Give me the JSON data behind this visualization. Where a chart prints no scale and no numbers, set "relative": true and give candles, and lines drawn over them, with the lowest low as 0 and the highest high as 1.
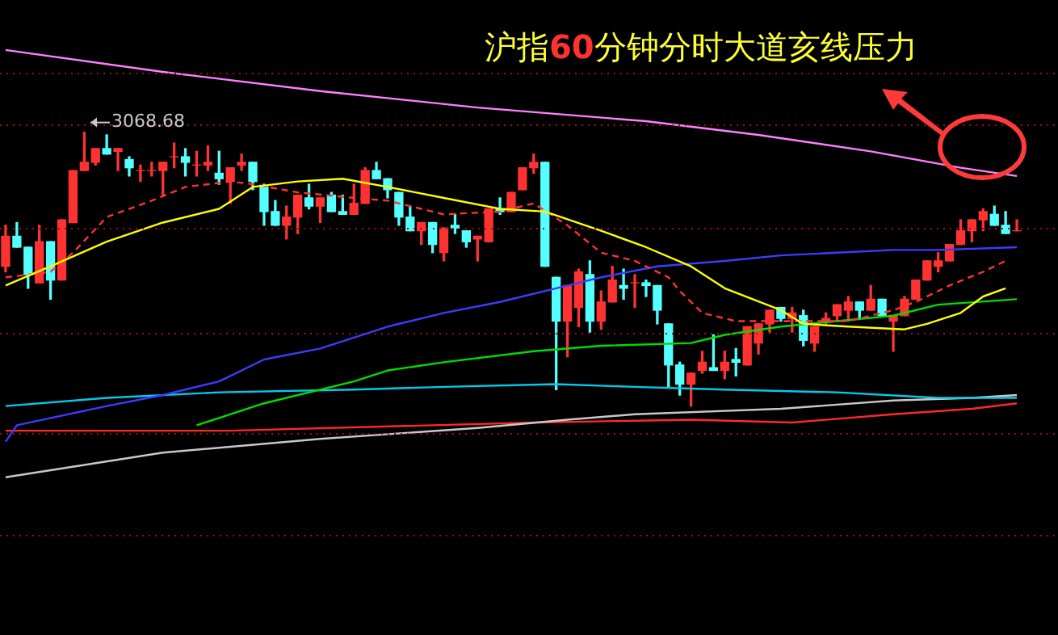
{
  "chart_data": {
    "type": "candlestick",
    "title": "沪指60分钟分时大道亥线压力",
    "relative": true,
    "ref_lines": [
      {
        "axis": "y",
        "value": 1.22,
        "color": "#a01010",
        "line_style": "dotted"
      },
      {
        "axis": "y",
        "value": 1.03,
        "color": "#a01010",
        "line_style": "dotted"
      },
      {
        "axis": "y",
        "value": 0.65,
        "color": "#a01010",
        "line_style": "dotted"
      },
      {
        "axis": "y",
        "value": 0.27,
        "color": "#a01010",
        "line_style": "dotted"
      },
      {
        "axis": "y",
        "value": -0.1,
        "color": "#a01010",
        "line_style": "dotted"
      },
      {
        "axis": "y",
        "value": -0.47,
        "color": "#a01010",
        "line_style": "dotted"
      }
    ],
    "categories": [
      null,
      null,
      null,
      null,
      null,
      null,
      null,
      null,
      null,
      null,
      null,
      null,
      null,
      null,
      null,
      null,
      null,
      null,
      null,
      null,
      null,
      null,
      null,
      null,
      null,
      null,
      null,
      null,
      null,
      null,
      null,
      null,
      null,
      null,
      null,
      null,
      null,
      null,
      null,
      null,
      null,
      null,
      null,
      null,
      null,
      null,
      null,
      null,
      null,
      null,
      null,
      null,
      null,
      null,
      null,
      null,
      null,
      null,
      null,
      null,
      null,
      null,
      null,
      null,
      null,
      null,
      null,
      null,
      null,
      null,
      null,
      null,
      null,
      null,
      null,
      null,
      null,
      null,
      null,
      null,
      null,
      null,
      null,
      null,
      null,
      null,
      null,
      null,
      null,
      null,
      null
    ],
    "ohlc": [
      [
        0.51,
        0.66,
        0.49,
        0.62
      ],
      [
        0.62,
        0.67,
        0.58,
        0.58
      ],
      [
        0.58,
        0.58,
        0.43,
        0.48
      ],
      [
        0.45,
        0.66,
        0.45,
        0.6
      ],
      [
        0.6,
        0.6,
        0.39,
        0.46
      ],
      [
        0.46,
        0.68,
        0.46,
        0.68
      ],
      [
        0.67,
        0.86,
        0.67,
        0.86
      ],
      [
        0.86,
        1,
        0.86,
        0.89
      ],
      [
        0.89,
        0.94,
        0.88,
        0.94
      ],
      [
        0.94,
        0.99,
        0.92,
        0.92
      ],
      [
        0.93,
        0.94,
        0.86,
        0.94
      ],
      [
        0.9,
        0.91,
        0.84,
        0.87
      ],
      [
        0.86,
        0.88,
        0.82,
        0.86
      ],
      [
        0.86,
        0.89,
        0.84,
        0.86
      ],
      [
        0.86,
        0.89,
        0.77,
        0.89
      ],
      [
        0.91,
        0.96,
        0.87,
        0.91
      ],
      [
        0.91,
        0.94,
        0.84,
        0.89
      ],
      [
        0.88,
        0.93,
        0.84,
        0.88
      ],
      [
        0.88,
        0.95,
        0.86,
        0.89
      ],
      [
        0.85,
        0.93,
        0.81,
        0.83
      ],
      [
        0.82,
        0.87,
        0.74,
        0.87
      ],
      [
        0.88,
        0.92,
        0.86,
        0.89
      ],
      [
        0.89,
        0.89,
        0.79,
        0.82
      ],
      [
        0.8,
        0.81,
        0.66,
        0.71
      ],
      [
        0.71,
        0.75,
        0.66,
        0.66
      ],
      [
        0.66,
        0.73,
        0.61,
        0.69
      ],
      [
        0.69,
        0.77,
        0.63,
        0.77
      ],
      [
        0.76,
        0.81,
        0.72,
        0.73
      ],
      [
        0.73,
        0.76,
        0.67,
        0.76
      ],
      [
        0.77,
        0.78,
        0.71,
        0.71
      ],
      [
        0.71,
        0.77,
        0.7,
        0.7
      ],
      [
        0.7,
        0.81,
        0.7,
        0.74
      ],
      [
        0.74,
        0.87,
        0.74,
        0.86
      ],
      [
        0.86,
        0.89,
        0.83,
        0.83
      ],
      [
        0.83,
        0.83,
        0.76,
        0.79
      ],
      [
        0.78,
        0.78,
        0.66,
        0.69
      ],
      [
        0.69,
        0.73,
        0.64,
        0.64
      ],
      [
        0.64,
        0.67,
        0.59,
        0.67
      ],
      [
        0.67,
        0.67,
        0.56,
        0.59
      ],
      [
        0.56,
        0.65,
        0.53,
        0.65
      ],
      [
        0.66,
        0.7,
        0.63,
        0.65
      ],
      [
        0.64,
        0.64,
        0.58,
        0.6
      ],
      [
        0.61,
        0.62,
        0.53,
        0.62
      ],
      [
        0.6,
        0.72,
        0.6,
        0.72
      ],
      [
        0.72,
        0.76,
        0.7,
        0.71
      ],
      [
        0.71,
        0.78,
        0.71,
        0.78
      ],
      [
        0.79,
        0.87,
        0.79,
        0.87
      ],
      [
        0.87,
        0.92,
        0.85,
        0.89
      ],
      [
        0.89,
        0.89,
        0.51,
        0.51
      ],
      [
        0.47,
        0.47,
        0.06,
        0.31
      ],
      [
        0.31,
        0.44,
        0.18,
        0.44
      ],
      [
        0.36,
        0.5,
        0.29,
        0.49
      ],
      [
        0.48,
        0.53,
        0.27,
        0.31
      ],
      [
        0.31,
        0.42,
        0.28,
        0.38
      ],
      [
        0.38,
        0.51,
        0.38,
        0.46
      ],
      [
        0.44,
        0.5,
        0.39,
        0.43
      ],
      [
        0.45,
        0.48,
        0.36,
        0.45
      ],
      [
        0.45,
        0.46,
        0.4,
        0.44
      ],
      [
        0.44,
        0.44,
        0.3,
        0.35
      ],
      [
        0.3,
        0.3,
        0.07,
        0.15
      ],
      [
        0.15,
        0.16,
        0.04,
        0.08
      ],
      [
        0.08,
        0.12,
        0,
        0.12
      ],
      [
        0.13,
        0.2,
        0.12,
        0.16
      ],
      [
        0.14,
        0.26,
        0.13,
        0.13
      ],
      [
        0.13,
        0.2,
        0.1,
        0.16
      ],
      [
        0.17,
        0.21,
        0.11,
        0.16
      ],
      [
        0.15,
        0.29,
        0.15,
        0.29
      ],
      [
        0.23,
        0.3,
        0.19,
        0.3
      ],
      [
        0.3,
        0.35,
        0.27,
        0.35
      ],
      [
        0.36,
        0.36,
        0.31,
        0.32
      ],
      [
        0.32,
        0.36,
        0.27,
        0.34
      ],
      [
        0.33,
        0.35,
        0.22,
        0.24
      ],
      [
        0.23,
        0.29,
        0.2,
        0.29
      ],
      [
        0.31,
        0.34,
        0.3,
        0.32
      ],
      [
        0.33,
        0.37,
        0.31,
        0.37
      ],
      [
        0.35,
        0.4,
        0.31,
        0.38
      ],
      [
        0.38,
        0.38,
        0.32,
        0.35
      ],
      [
        0.35,
        0.44,
        0.35,
        0.39
      ],
      [
        0.39,
        0.39,
        0.33,
        0.33
      ],
      [
        0.31,
        0.33,
        0.2,
        0.33
      ],
      [
        0.33,
        0.4,
        0.33,
        0.39
      ],
      [
        0.39,
        0.46,
        0.39,
        0.46
      ],
      [
        0.46,
        0.53,
        0.46,
        0.53
      ],
      [
        0.51,
        0.56,
        0.49,
        0.53
      ],
      [
        0.53,
        0.59,
        0.53,
        0.59
      ],
      [
        0.59,
        0.68,
        0.59,
        0.64
      ],
      [
        0.64,
        0.68,
        0.6,
        0.68
      ],
      [
        0.68,
        0.72,
        0.64,
        0.71
      ],
      [
        0.7,
        0.73,
        0.66,
        0.66
      ],
      [
        0.66,
        0.71,
        0.63,
        0.63
      ],
      [
        0.64,
        0.68,
        0.64,
        0.64
      ]
    ],
    "series": [
      {
        "type": "line",
        "color": "#ff80ff",
        "values": [
          1.3,
          null,
          null,
          null,
          null,
          null,
          null,
          null,
          null,
          null,
          null,
          null,
          null,
          null,
          1.22,
          null,
          null,
          null,
          null,
          null,
          null,
          null,
          null,
          null,
          null,
          null,
          null,
          null,
          1.15,
          null,
          null,
          null,
          null,
          null,
          null,
          null,
          null,
          null,
          null,
          null,
          null,
          null,
          1.09,
          null,
          null,
          null,
          null,
          null,
          null,
          null,
          null,
          null,
          null,
          null,
          null,
          null,
          null,
          1.04,
          null,
          null,
          null,
          null,
          null,
          null,
          null,
          null,
          null,
          0.99,
          null,
          null,
          null,
          null,
          null,
          null,
          null,
          null,
          null,
          0.93,
          null,
          null,
          null,
          null,
          null,
          null,
          null,
          0.87,
          null,
          null,
          null,
          null,
          0.84
        ]
      },
      {
        "type": "line",
        "color": "#ffff00",
        "values": [
          0.44,
          null,
          null,
          null,
          0.51,
          null,
          null,
          null,
          null,
          0.6,
          null,
          null,
          null,
          null,
          0.67,
          null,
          null,
          null,
          null,
          0.72,
          null,
          null,
          0.8,
          null,
          null,
          null,
          0.82,
          null,
          null,
          null,
          0.83,
          null,
          null,
          null,
          0.8,
          null,
          null,
          null,
          null,
          0.76,
          null,
          null,
          null,
          null,
          0.72,
          null,
          null,
          null,
          0.71,
          null,
          null,
          null,
          null,
          0.64,
          null,
          null,
          null,
          0.58,
          null,
          null,
          null,
          0.51,
          null,
          null,
          0.43,
          null,
          null,
          null,
          null,
          0.35,
          null,
          0.3,
          null,
          null,
          null,
          0.29,
          null,
          null,
          null,
          null,
          0.28,
          null,
          0.3,
          null,
          null,
          0.34,
          null,
          0.4,
          null,
          0.43,
          null
        ]
      },
      {
        "type": "line",
        "color": "#ff3232",
        "line_style": "dashed",
        "values": [
          0.47,
          null,
          null,
          null,
          0.49,
          null,
          0.56,
          null,
          null,
          0.69,
          null,
          null,
          null,
          0.75,
          null,
          null,
          0.8,
          null,
          null,
          null,
          0.82,
          null,
          0.81,
          null,
          null,
          null,
          0.78,
          null,
          null,
          null,
          null,
          0.76,
          null,
          null,
          0.75,
          null,
          null,
          null,
          null,
          0.7,
          null,
          null,
          null,
          null,
          0.71,
          null,
          null,
          0.74,
          null,
          null,
          0.66,
          null,
          null,
          0.56,
          null,
          null,
          0.53,
          null,
          null,
          0.47,
          0.42,
          null,
          0.34,
          null,
          null,
          0.31,
          null,
          null,
          null,
          0.31,
          null,
          null,
          null,
          null,
          null,
          0.31,
          null,
          null,
          null,
          0.35,
          null,
          0.38,
          null,
          null,
          0.44,
          null,
          null,
          0.49,
          null,
          0.53,
          null
        ]
      },
      {
        "type": "line",
        "color": "#3c3cff",
        "values": [
          -0.13,
          -0.07,
          null,
          null,
          null,
          null,
          null,
          null,
          null,
          0,
          null,
          null,
          null,
          null,
          0.04,
          null,
          null,
          null,
          null,
          0.09,
          null,
          null,
          null,
          0.17,
          null,
          null,
          null,
          null,
          0.21,
          null,
          null,
          null,
          null,
          null,
          0.29,
          null,
          null,
          null,
          null,
          0.34,
          null,
          null,
          null,
          null,
          0.38,
          null,
          null,
          null,
          null,
          0.43,
          null,
          null,
          null,
          0.47,
          null,
          null,
          null,
          null,
          0.51,
          null,
          null,
          null,
          null,
          null,
          0.53,
          null,
          null,
          null,
          null,
          0.55,
          null,
          null,
          null,
          null,
          0.56,
          null,
          null,
          null,
          null,
          0.57,
          null,
          null,
          null,
          0.57,
          null,
          null,
          null,
          null,
          null,
          null,
          0.58
        ]
      },
      {
        "type": "line",
        "color": "#00dd00",
        "values": [
          null,
          null,
          null,
          null,
          null,
          null,
          null,
          null,
          null,
          null,
          null,
          null,
          null,
          null,
          null,
          null,
          null,
          -0.07,
          null,
          null,
          null,
          null,
          null,
          0.01,
          null,
          null,
          null,
          null,
          null,
          null,
          null,
          0.09,
          null,
          null,
          0.13,
          null,
          null,
          null,
          null,
          0.16,
          null,
          null,
          null,
          null,
          null,
          null,
          null,
          0.2,
          null,
          null,
          null,
          null,
          null,
          0.22,
          null,
          null,
          null,
          null,
          null,
          null,
          null,
          0.23,
          null,
          null,
          0.26,
          null,
          null,
          null,
          null,
          0.29,
          null,
          null,
          null,
          null,
          0.31,
          null,
          null,
          null,
          null,
          0.33,
          null,
          null,
          null,
          0.37,
          null,
          null,
          null,
          null,
          null,
          null,
          0.39
        ]
      },
      {
        "type": "line",
        "color": "#00ccee",
        "values": [
          0,
          null,
          null,
          null,
          null,
          null,
          null,
          null,
          null,
          0.03,
          null,
          null,
          null,
          null,
          null,
          null,
          null,
          null,
          null,
          0.05,
          null,
          null,
          null,
          null,
          null,
          null,
          null,
          null,
          null,
          null,
          null,
          0.06,
          null,
          null,
          null,
          null,
          null,
          null,
          null,
          0.07,
          null,
          null,
          null,
          null,
          null,
          null,
          null,
          null,
          null,
          0.08,
          null,
          null,
          null,
          null,
          null,
          null,
          0.07,
          null,
          null,
          null,
          null,
          null,
          null,
          null,
          0.06,
          null,
          null,
          null,
          null,
          null,
          null,
          null,
          null,
          null,
          0.05,
          null,
          null,
          null,
          null,
          null,
          null,
          null,
          null,
          0.03,
          null,
          null,
          null,
          null,
          null,
          null,
          0.03
        ]
      },
      {
        "type": "line",
        "color": "#c8c8c8",
        "values": [
          -0.26,
          null,
          null,
          null,
          null,
          null,
          null,
          null,
          null,
          null,
          null,
          null,
          null,
          null,
          -0.17,
          null,
          null,
          null,
          null,
          null,
          null,
          null,
          null,
          null,
          null,
          null,
          null,
          null,
          -0.12,
          null,
          null,
          null,
          null,
          null,
          null,
          null,
          null,
          null,
          null,
          null,
          null,
          null,
          -0.08,
          null,
          null,
          null,
          null,
          null,
          null,
          null,
          -0.05,
          null,
          null,
          null,
          null,
          null,
          -0.03,
          null,
          null,
          null,
          null,
          null,
          null,
          null,
          null,
          null,
          null,
          null,
          null,
          -0.01,
          null,
          null,
          null,
          null,
          null,
          null,
          null,
          null,
          null,
          0.02,
          null,
          null,
          null,
          null,
          null,
          null,
          0.03,
          null,
          null,
          null,
          0.04
        ]
      },
      {
        "type": "line",
        "color": "#ff2828",
        "values": [
          -0.09,
          null,
          null,
          null,
          null,
          null,
          null,
          null,
          null,
          null,
          null,
          null,
          null,
          null,
          null,
          null,
          null,
          null,
          null,
          null,
          -0.09,
          null,
          null,
          null,
          null,
          null,
          null,
          null,
          null,
          null,
          null,
          null,
          null,
          null,
          null,
          null,
          null,
          null,
          null,
          null,
          null,
          null,
          null,
          null,
          null,
          null,
          null,
          -0.06,
          null,
          null,
          null,
          null,
          null,
          null,
          null,
          null,
          null,
          null,
          null,
          null,
          null,
          -0.05,
          null,
          null,
          null,
          null,
          null,
          null,
          null,
          null,
          -0.06,
          null,
          null,
          null,
          null,
          null,
          null,
          null,
          null,
          -0.03,
          null,
          null,
          null,
          null,
          null,
          null,
          -0.01,
          null,
          null,
          null,
          0.01
        ]
      }
    ],
    "annotations": [
      "3068.68"
    ]
  }
}
